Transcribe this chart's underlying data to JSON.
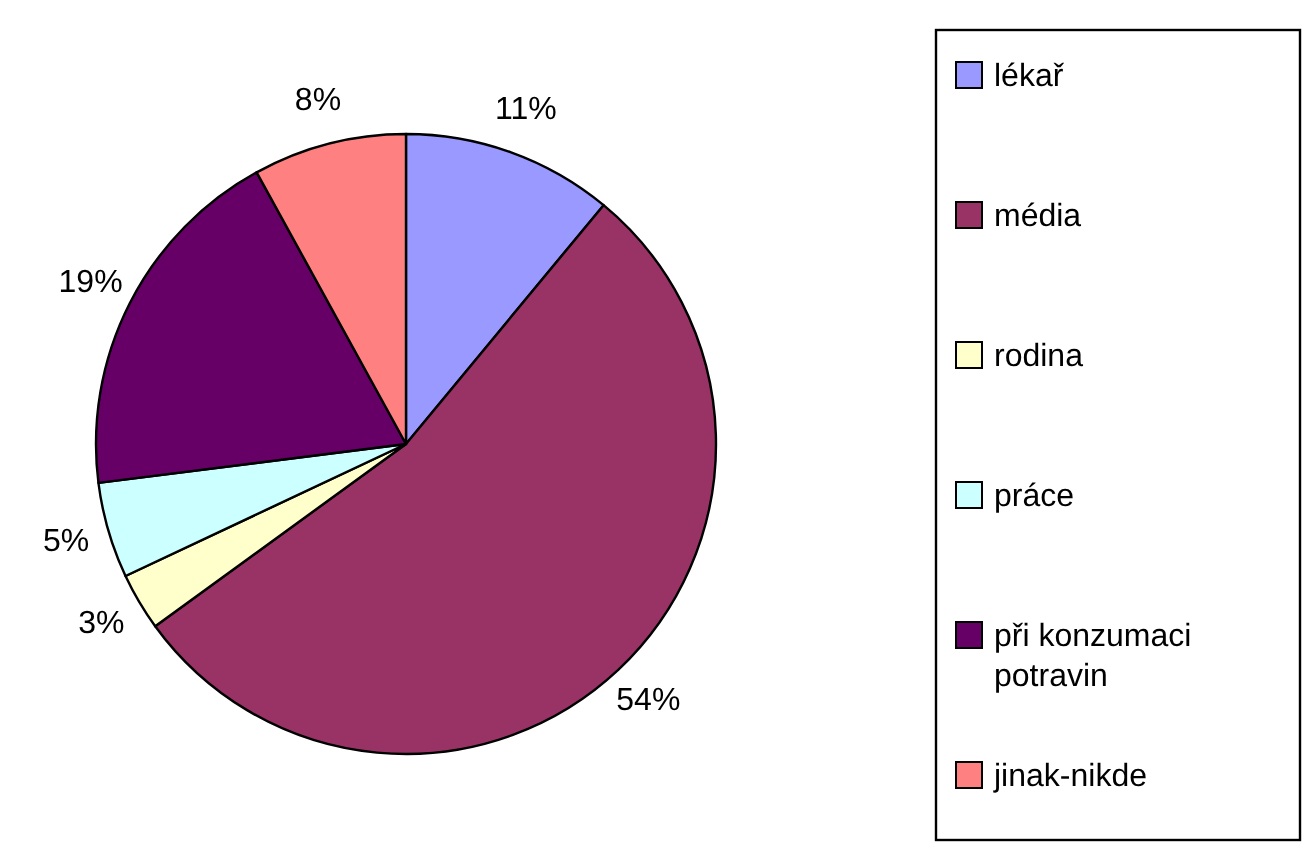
{
  "chart_data": {
    "type": "pie",
    "categories": [
      "lékař",
      "média",
      "rodina",
      "práce",
      "při konzumaci potravin",
      "jinak-nikde"
    ],
    "values": [
      11,
      54,
      3,
      5,
      19,
      8
    ],
    "colors": [
      "#9999ff",
      "#993366",
      "#ffffcc",
      "#ccffff",
      "#660066",
      "#ff8080"
    ],
    "value_labels": [
      "11%",
      "54%",
      "3%",
      "5%",
      "19%",
      "8%"
    ],
    "legend": "right"
  }
}
